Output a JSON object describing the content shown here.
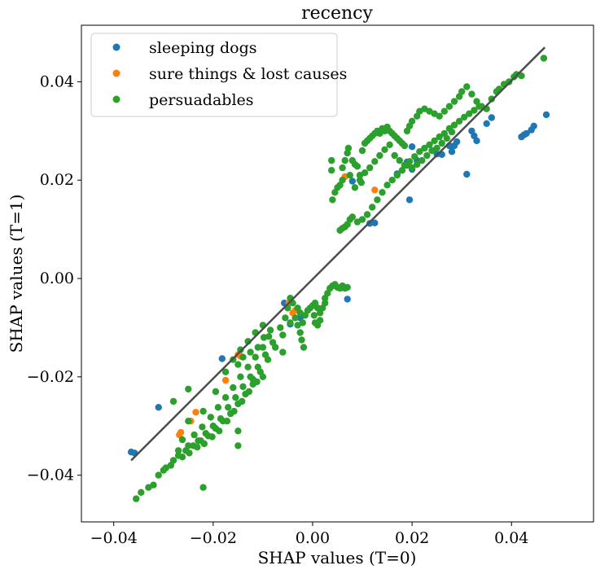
{
  "chart_data": {
    "type": "scatter",
    "title": "recency",
    "xlabel": "SHAP values (T=0)",
    "ylabel": "SHAP values (T=1)",
    "xlim": [
      -0.0465,
      0.0565
    ],
    "ylim": [
      -0.0495,
      0.0515
    ],
    "xticks": [
      -0.04,
      -0.02,
      0.0,
      0.02,
      0.04
    ],
    "xtick_labels": [
      "−0.04",
      "−0.02",
      "0.00",
      "0.02",
      "0.04"
    ],
    "yticks": [
      -0.04,
      -0.02,
      0.0,
      0.02,
      0.04
    ],
    "ytick_labels": [
      "−0.04",
      "−0.02",
      "0.00",
      "0.02",
      "0.04"
    ],
    "grid": false,
    "legend_position": "top-left",
    "trend_line": {
      "x": [
        -0.0365,
        0.0467
      ],
      "y": [
        -0.037,
        0.047
      ],
      "color": "#4d4d4d"
    },
    "series": [
      {
        "name": "sleeping dogs",
        "color": "#1f77b4",
        "points": [
          [
            -0.0365,
            -0.0353
          ],
          [
            -0.0358,
            -0.0355
          ],
          [
            -0.031,
            -0.0262
          ],
          [
            -0.0182,
            -0.0163
          ],
          [
            -0.0057,
            -0.005
          ],
          [
            -0.0045,
            -0.0093
          ],
          [
            -0.0025,
            -0.008
          ],
          [
            0.007,
            -0.0042
          ],
          [
            0.008,
            0.0198
          ],
          [
            0.0115,
            0.0112
          ],
          [
            0.0125,
            0.0113
          ],
          [
            0.017,
            0.0213
          ],
          [
            0.019,
            0.0237
          ],
          [
            0.0195,
            0.016
          ],
          [
            0.02,
            0.0222
          ],
          [
            0.02,
            0.0268
          ],
          [
            0.021,
            0.024
          ],
          [
            0.025,
            0.0253
          ],
          [
            0.026,
            0.0252
          ],
          [
            0.0275,
            0.027
          ],
          [
            0.028,
            0.0258
          ],
          [
            0.0285,
            0.027
          ],
          [
            0.029,
            0.0278
          ],
          [
            0.031,
            0.0212
          ],
          [
            0.032,
            0.03
          ],
          [
            0.0325,
            0.029
          ],
          [
            0.033,
            0.028
          ],
          [
            0.035,
            0.0315
          ],
          [
            0.036,
            0.0327
          ],
          [
            0.042,
            0.0288
          ],
          [
            0.0425,
            0.0292
          ],
          [
            0.043,
            0.0295
          ],
          [
            0.044,
            0.0302
          ],
          [
            0.0445,
            0.031
          ],
          [
            0.047,
            0.0333
          ]
        ]
      },
      {
        "name": "sure things & lost causes",
        "color": "#ff7f0e",
        "points": [
          [
            -0.0268,
            -0.0318
          ],
          [
            -0.0265,
            -0.0313
          ],
          [
            -0.0245,
            -0.029
          ],
          [
            -0.0235,
            -0.0272
          ],
          [
            -0.0175,
            -0.0207
          ],
          [
            -0.015,
            -0.0155
          ],
          [
            -0.0145,
            -0.0158
          ],
          [
            -0.0048,
            -0.005
          ],
          [
            -0.004,
            -0.007
          ],
          [
            -0.0035,
            -0.0065
          ],
          [
            0.0065,
            0.0207
          ],
          [
            0.0125,
            0.018
          ]
        ]
      },
      {
        "name": "persuadables",
        "color": "#2ca02c",
        "points": [
          [
            -0.0355,
            -0.0448
          ],
          [
            -0.0345,
            -0.0435
          ],
          [
            -0.033,
            -0.0425
          ],
          [
            -0.032,
            -0.042
          ],
          [
            -0.031,
            -0.04
          ],
          [
            -0.03,
            -0.039
          ],
          [
            -0.0295,
            -0.0385
          ],
          [
            -0.028,
            -0.037
          ],
          [
            -0.027,
            -0.036
          ],
          [
            -0.0255,
            -0.035
          ],
          [
            -0.024,
            -0.034
          ],
          [
            -0.0225,
            -0.033
          ],
          [
            -0.021,
            -0.032
          ],
          [
            -0.0195,
            -0.0305
          ],
          [
            -0.018,
            -0.029
          ],
          [
            -0.0165,
            -0.0275
          ],
          [
            -0.015,
            -0.0255
          ],
          [
            -0.0135,
            -0.0235
          ],
          [
            -0.012,
            -0.0215
          ],
          [
            -0.0105,
            -0.019
          ],
          [
            -0.009,
            -0.0165
          ],
          [
            -0.0075,
            -0.014
          ],
          [
            -0.006,
            -0.0115
          ],
          [
            -0.0045,
            -0.009
          ],
          [
            -0.0285,
            -0.038
          ],
          [
            -0.0262,
            -0.0363
          ],
          [
            -0.0248,
            -0.0355
          ],
          [
            -0.0232,
            -0.0343
          ],
          [
            -0.0218,
            -0.0336
          ],
          [
            -0.0202,
            -0.0322
          ],
          [
            -0.0188,
            -0.031
          ],
          [
            -0.0172,
            -0.029
          ],
          [
            -0.0158,
            -0.027
          ],
          [
            -0.0142,
            -0.025
          ],
          [
            -0.0128,
            -0.023
          ],
          [
            -0.0112,
            -0.021
          ],
          [
            -0.027,
            -0.035
          ],
          [
            -0.025,
            -0.034
          ],
          [
            -0.023,
            -0.033
          ],
          [
            -0.0215,
            -0.0315
          ],
          [
            -0.02,
            -0.03
          ],
          [
            -0.0185,
            -0.0285
          ],
          [
            -0.017,
            -0.0262
          ],
          [
            -0.0155,
            -0.0242
          ],
          [
            -0.014,
            -0.022
          ],
          [
            -0.0125,
            -0.02
          ],
          [
            -0.011,
            -0.018
          ],
          [
            -0.0095,
            -0.0155
          ],
          [
            -0.008,
            -0.013
          ],
          [
            -0.0262,
            -0.0328
          ],
          [
            -0.0238,
            -0.0318
          ],
          [
            -0.0222,
            -0.0302
          ],
          [
            -0.0205,
            -0.0282
          ],
          [
            -0.019,
            -0.0262
          ],
          [
            -0.0175,
            -0.0242
          ],
          [
            -0.016,
            -0.0222
          ],
          [
            -0.0145,
            -0.02
          ],
          [
            -0.013,
            -0.018
          ],
          [
            -0.0115,
            -0.016
          ],
          [
            -0.01,
            -0.014
          ],
          [
            -0.0088,
            -0.0118
          ],
          [
            -0.015,
            -0.0175
          ],
          [
            -0.014,
            -0.016
          ],
          [
            -0.0125,
            -0.015
          ],
          [
            -0.011,
            -0.014
          ],
          [
            -0.0098,
            -0.012
          ],
          [
            -0.0085,
            -0.0105
          ],
          [
            -0.0175,
            -0.019
          ],
          [
            -0.016,
            -0.0165
          ],
          [
            -0.0145,
            -0.0145
          ],
          [
            -0.013,
            -0.0128
          ],
          [
            -0.0115,
            -0.011
          ],
          [
            -0.01,
            -0.0095
          ],
          [
            -0.025,
            -0.029
          ],
          [
            -0.022,
            -0.027
          ],
          [
            -0.0195,
            -0.023
          ],
          [
            -0.028,
            -0.025
          ],
          [
            -0.025,
            -0.0225
          ],
          [
            -0.022,
            -0.0425
          ],
          [
            -0.015,
            -0.034
          ],
          [
            -0.015,
            -0.031
          ],
          [
            -0.012,
            -0.0205
          ],
          [
            -0.01,
            -0.02
          ],
          [
            -0.006,
            -0.015
          ],
          [
            -0.0065,
            -0.01
          ],
          [
            -0.0055,
            -0.008
          ],
          [
            -0.005,
            -0.006
          ],
          [
            -0.0045,
            -0.004
          ],
          [
            -0.004,
            -0.005
          ],
          [
            -0.0035,
            -0.008
          ],
          [
            -0.003,
            -0.0095
          ],
          [
            -0.0025,
            -0.011
          ],
          [
            -0.0022,
            -0.0125
          ],
          [
            -0.0018,
            -0.014
          ],
          [
            -0.003,
            -0.006
          ],
          [
            -0.0025,
            -0.007
          ],
          [
            -0.002,
            -0.009
          ],
          [
            -0.0015,
            -0.0075
          ],
          [
            -0.001,
            -0.0065
          ],
          [
            -0.0005,
            -0.006
          ],
          [
            0.0,
            -0.0055
          ],
          [
            0.0005,
            -0.005
          ],
          [
            0.001,
            -0.006
          ],
          [
            0.0015,
            -0.007
          ],
          [
            0.002,
            -0.006
          ],
          [
            0.0025,
            -0.005
          ],
          [
            0.0015,
            -0.0085
          ],
          [
            0.001,
            -0.0095
          ],
          [
            0.0005,
            -0.009
          ],
          [
            0.0003,
            -0.0075
          ],
          [
            0.0025,
            -0.004
          ],
          [
            0.003,
            -0.003
          ],
          [
            0.0035,
            -0.002
          ],
          [
            0.004,
            -0.0015
          ],
          [
            0.0045,
            -0.0012
          ],
          [
            0.005,
            -0.0018
          ],
          [
            0.0055,
            -0.002
          ],
          [
            0.006,
            -0.0015
          ],
          [
            0.0065,
            -0.002
          ],
          [
            0.007,
            -0.0018
          ],
          [
            0.0038,
            0.024
          ],
          [
            0.0038,
            0.022
          ],
          [
            0.004,
            0.016
          ],
          [
            0.0045,
            0.0175
          ],
          [
            0.005,
            0.0185
          ],
          [
            0.0055,
            0.019
          ],
          [
            0.006,
            0.02
          ],
          [
            0.006,
            0.0225
          ],
          [
            0.0065,
            0.024
          ],
          [
            0.007,
            0.0255
          ],
          [
            0.0072,
            0.0265
          ],
          [
            0.0075,
            0.021
          ],
          [
            0.008,
            0.024
          ],
          [
            0.0085,
            0.0232
          ],
          [
            0.009,
            0.0228
          ],
          [
            0.0095,
            0.021
          ],
          [
            0.0098,
            0.0195
          ],
          [
            0.01,
            0.026
          ],
          [
            0.0105,
            0.0275
          ],
          [
            0.011,
            0.028
          ],
          [
            0.0115,
            0.0285
          ],
          [
            0.012,
            0.029
          ],
          [
            0.0125,
            0.0295
          ],
          [
            0.013,
            0.03
          ],
          [
            0.0135,
            0.0295
          ],
          [
            0.014,
            0.0305
          ],
          [
            0.0145,
            0.03
          ],
          [
            0.015,
            0.0308
          ],
          [
            0.0155,
            0.03
          ],
          [
            0.016,
            0.0295
          ],
          [
            0.0165,
            0.029
          ],
          [
            0.017,
            0.0285
          ],
          [
            0.0175,
            0.028
          ],
          [
            0.018,
            0.0275
          ],
          [
            0.0185,
            0.027
          ],
          [
            0.019,
            0.03
          ],
          [
            0.0195,
            0.031
          ],
          [
            0.02,
            0.032
          ],
          [
            0.021,
            0.033
          ],
          [
            0.0215,
            0.034
          ],
          [
            0.0225,
            0.0345
          ],
          [
            0.0235,
            0.034
          ],
          [
            0.0245,
            0.0335
          ],
          [
            0.0255,
            0.033
          ],
          [
            0.0265,
            0.034
          ],
          [
            0.0275,
            0.035
          ],
          [
            0.0285,
            0.036
          ],
          [
            0.0295,
            0.037
          ],
          [
            0.03,
            0.038
          ],
          [
            0.031,
            0.039
          ],
          [
            0.032,
            0.0375
          ],
          [
            0.033,
            0.036
          ],
          [
            0.034,
            0.035
          ],
          [
            0.035,
            0.0345
          ],
          [
            0.036,
            0.0365
          ],
          [
            0.037,
            0.038
          ],
          [
            0.0375,
            0.0385
          ],
          [
            0.0385,
            0.0395
          ],
          [
            0.0395,
            0.04
          ],
          [
            0.0405,
            0.041
          ],
          [
            0.041,
            0.0415
          ],
          [
            0.0465,
            0.0448
          ],
          [
            0.042,
            0.0412
          ],
          [
            0.0085,
            0.0185
          ],
          [
            0.0095,
            0.02
          ],
          [
            0.0105,
            0.0215
          ],
          [
            0.0115,
            0.0225
          ],
          [
            0.0125,
            0.0238
          ],
          [
            0.0135,
            0.025
          ],
          [
            0.0145,
            0.0262
          ],
          [
            0.0155,
            0.0272
          ],
          [
            0.0165,
            0.025
          ],
          [
            0.0175,
            0.024
          ],
          [
            0.0185,
            0.023
          ],
          [
            0.0195,
            0.0238
          ],
          [
            0.0205,
            0.0248
          ],
          [
            0.0215,
            0.0258
          ],
          [
            0.0225,
            0.0265
          ],
          [
            0.0235,
            0.0272
          ],
          [
            0.0245,
            0.028
          ],
          [
            0.0255,
            0.0288
          ],
          [
            0.0265,
            0.0295
          ],
          [
            0.0275,
            0.0305
          ],
          [
            0.0285,
            0.0312
          ],
          [
            0.0295,
            0.032
          ],
          [
            0.0305,
            0.0328
          ],
          [
            0.0315,
            0.0335
          ],
          [
            0.0325,
            0.0342
          ],
          [
            0.0335,
            0.035
          ],
          [
            0.0055,
            0.0098
          ],
          [
            0.006,
            0.0102
          ],
          [
            0.0065,
            0.0105
          ],
          [
            0.007,
            0.011
          ],
          [
            0.0075,
            0.012
          ],
          [
            0.008,
            0.0125
          ],
          [
            0.009,
            0.0115
          ],
          [
            0.01,
            0.012
          ],
          [
            0.011,
            0.013
          ],
          [
            0.012,
            0.0145
          ],
          [
            0.013,
            0.016
          ],
          [
            0.014,
            0.0175
          ],
          [
            0.015,
            0.019
          ],
          [
            0.016,
            0.02
          ],
          [
            0.017,
            0.021
          ],
          [
            0.018,
            0.022
          ],
          [
            0.019,
            0.023
          ],
          [
            0.02,
            0.0225
          ],
          [
            0.021,
            0.0232
          ],
          [
            0.022,
            0.024
          ],
          [
            0.023,
            0.025
          ],
          [
            0.024,
            0.026
          ],
          [
            0.025,
            0.0265
          ],
          [
            0.026,
            0.0275
          ],
          [
            0.027,
            0.0285
          ],
          [
            0.028,
            0.0298
          ]
        ]
      }
    ]
  }
}
